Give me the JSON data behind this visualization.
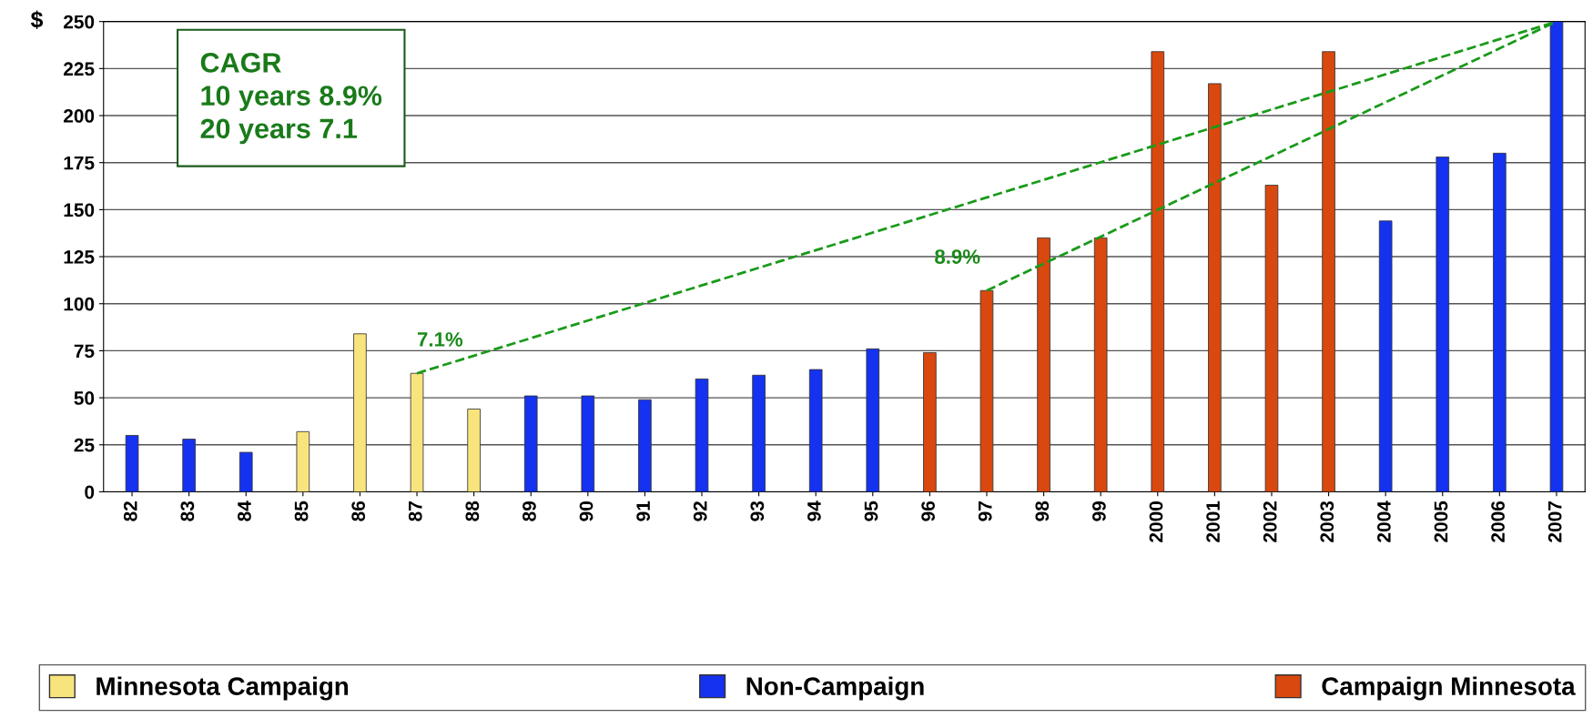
{
  "chart_data": {
    "type": "bar",
    "ylabel": "$",
    "categories": [
      "82",
      "83",
      "84",
      "85",
      "86",
      "87",
      "88",
      "89",
      "90",
      "91",
      "92",
      "93",
      "94",
      "95",
      "96",
      "97",
      "98",
      "99",
      "2000",
      "2001",
      "2002",
      "2003",
      "2004",
      "2005",
      "2006",
      "2007"
    ],
    "series": [
      {
        "name": "Minnesota Campaign",
        "color": "#f7e47c",
        "values": [
          null,
          null,
          null,
          32,
          84,
          63,
          44,
          null,
          null,
          null,
          null,
          null,
          null,
          null,
          null,
          null,
          null,
          null,
          null,
          null,
          null,
          null,
          null,
          null,
          null,
          null
        ]
      },
      {
        "name": "Non-Campaign",
        "color": "#1432f0",
        "values": [
          30,
          28,
          21,
          null,
          null,
          null,
          null,
          51,
          51,
          49,
          60,
          62,
          65,
          76,
          null,
          null,
          null,
          null,
          null,
          null,
          null,
          null,
          144,
          178,
          180,
          250
        ]
      },
      {
        "name": "Campaign Minnesota",
        "color": "#d9480f",
        "values": [
          null,
          null,
          null,
          null,
          null,
          null,
          null,
          null,
          null,
          null,
          null,
          null,
          null,
          null,
          74,
          107,
          135,
          135,
          234,
          217,
          163,
          234,
          null,
          null,
          null,
          null
        ]
      },
      {
        "type": "line",
        "values": [
          null,
          null,
          null,
          null,
          null,
          63,
          null,
          null,
          null,
          null,
          null,
          null,
          null,
          null,
          null,
          null,
          null,
          null,
          null,
          null,
          null,
          null,
          null,
          null,
          null,
          250
        ],
        "color": "#1a9a1a",
        "line_style": "dashed"
      },
      {
        "type": "line",
        "values": [
          null,
          null,
          null,
          null,
          null,
          null,
          null,
          null,
          null,
          null,
          null,
          null,
          null,
          null,
          null,
          107,
          null,
          null,
          null,
          null,
          null,
          null,
          null,
          null,
          null,
          250
        ],
        "color": "#1a9a1a",
        "line_style": "dashed"
      }
    ],
    "ylim": [
      0,
      250
    ],
    "yticks": [
      0,
      25,
      50,
      75,
      100,
      125,
      150,
      175,
      200,
      225,
      250
    ],
    "grid": "y",
    "legend": "bottom",
    "annotations": [
      "CAGR\n10 years 8.9%\n20 years 7.1",
      {
        "text": "7.1%",
        "x": "87",
        "y": 63
      },
      {
        "text": "8.9%",
        "x": "97",
        "y": 107
      }
    ]
  }
}
